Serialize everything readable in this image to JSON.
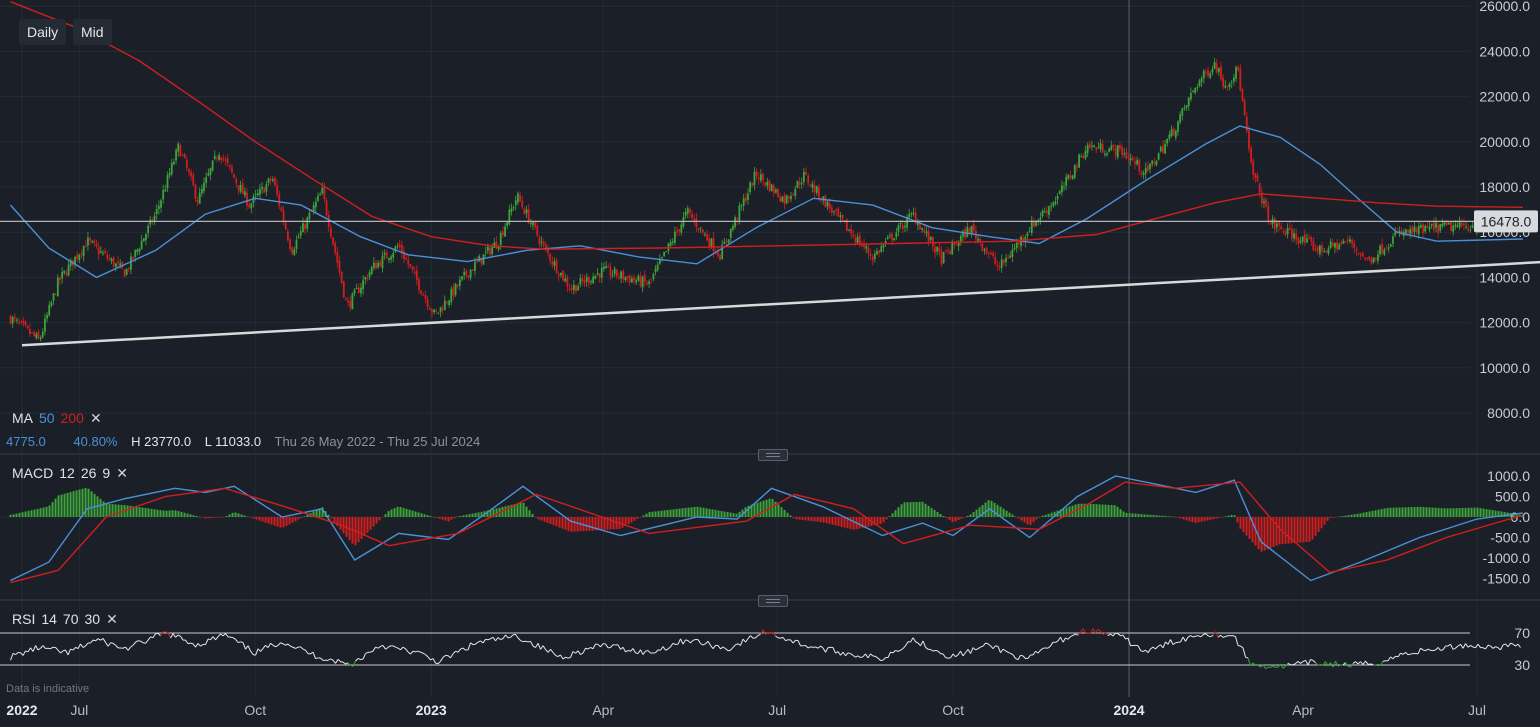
{
  "toolbar": {
    "interval_label": "Daily",
    "price_mode_label": "Mid"
  },
  "indicators": {
    "ma": {
      "label": "MA",
      "period_fast": "50",
      "period_slow": "200",
      "color_fast": "#4a90d9",
      "color_slow": "#d21e1e"
    },
    "macd": {
      "label": "MACD",
      "fast": "12",
      "slow": "26",
      "signal": "9"
    },
    "rsi": {
      "label": "RSI",
      "period": "14",
      "upper": "70",
      "lower": "30"
    }
  },
  "stats": {
    "change": "4775.0",
    "change_pct": "40.80%",
    "high": "H 23770.0",
    "low": "L 11033.0",
    "range": "Thu 26 May 2022 - Thu 25 Jul 2024"
  },
  "disclaimer": "Data is indicative",
  "colors": {
    "background": "#1b2028",
    "up": "#3da53a",
    "down": "#d21e1e",
    "ma_fast": "#4a90d9",
    "ma_slow": "#d21e1e",
    "trendline": "#d9d9d9",
    "current_price_line": "#b0b4ba"
  },
  "chart_data": {
    "type": "candlestick",
    "current_price": 16478.0,
    "current_price_label": "16478.0",
    "price_axis": {
      "ylim": [
        6500,
        26000
      ],
      "ticks": [
        {
          "value": 8000,
          "label": "8000.0"
        },
        {
          "value": 10000,
          "label": "10000.0"
        },
        {
          "value": 12000,
          "label": "12000.0"
        },
        {
          "value": 14000,
          "label": "14000.0"
        },
        {
          "value": 16000,
          "label": "16000.0"
        },
        {
          "value": 18000,
          "label": "18000.0"
        },
        {
          "value": 20000,
          "label": "20000.0"
        },
        {
          "value": 22000,
          "label": "22000.0"
        },
        {
          "value": 24000,
          "label": "24000.0"
        },
        {
          "value": 26000,
          "label": "26000.0"
        }
      ]
    },
    "time_axis": {
      "ticks": [
        {
          "date": "2022-06-01",
          "label": "2022",
          "bold": true
        },
        {
          "date": "2022-07-01",
          "label": "Jul",
          "bold": false
        },
        {
          "date": "2022-10-01",
          "label": "Oct",
          "bold": false
        },
        {
          "date": "2023-01-01",
          "label": "2023",
          "bold": true
        },
        {
          "date": "2023-04-01",
          "label": "Apr",
          "bold": false
        },
        {
          "date": "2023-07-01",
          "label": "Jul",
          "bold": false
        },
        {
          "date": "2023-10-01",
          "label": "Oct",
          "bold": false
        },
        {
          "date": "2024-01-01",
          "label": "2024",
          "bold": true
        },
        {
          "date": "2024-04-01",
          "label": "Apr",
          "bold": false
        },
        {
          "date": "2024-07-01",
          "label": "Jul",
          "bold": false
        }
      ],
      "crosshair_date": "2024-01-01"
    },
    "price_path": [
      [
        "2022-05-26",
        12200
      ],
      [
        "2022-06-10",
        11200
      ],
      [
        "2022-06-20",
        13800
      ],
      [
        "2022-07-05",
        15600
      ],
      [
        "2022-07-25",
        14200
      ],
      [
        "2022-08-10",
        16800
      ],
      [
        "2022-08-22",
        19800
      ],
      [
        "2022-09-01",
        17400
      ],
      [
        "2022-09-12",
        19600
      ],
      [
        "2022-09-28",
        17200
      ],
      [
        "2022-10-10",
        18400
      ],
      [
        "2022-10-20",
        15200
      ],
      [
        "2022-11-05",
        17800
      ],
      [
        "2022-11-18",
        12700
      ],
      [
        "2022-12-01",
        14400
      ],
      [
        "2022-12-15",
        15400
      ],
      [
        "2023-01-03",
        12300
      ],
      [
        "2023-01-20",
        14200
      ],
      [
        "2023-02-05",
        15600
      ],
      [
        "2023-02-15",
        17600
      ],
      [
        "2023-03-01",
        15300
      ],
      [
        "2023-03-15",
        13500
      ],
      [
        "2023-04-01",
        14300
      ],
      [
        "2023-04-25",
        13700
      ],
      [
        "2023-05-15",
        16900
      ],
      [
        "2023-06-01",
        15000
      ],
      [
        "2023-06-20",
        18600
      ],
      [
        "2023-07-05",
        17400
      ],
      [
        "2023-07-15",
        18500
      ],
      [
        "2023-08-01",
        16700
      ],
      [
        "2023-08-20",
        14900
      ],
      [
        "2023-09-10",
        16800
      ],
      [
        "2023-09-25",
        14800
      ],
      [
        "2023-10-10",
        16200
      ],
      [
        "2023-10-25",
        14400
      ],
      [
        "2023-11-10",
        16200
      ],
      [
        "2023-11-25",
        17600
      ],
      [
        "2023-12-10",
        19800
      ],
      [
        "2023-12-28",
        19600
      ],
      [
        "2024-01-10",
        18600
      ],
      [
        "2024-01-25",
        20600
      ],
      [
        "2024-02-05",
        22500
      ],
      [
        "2024-02-15",
        23500
      ],
      [
        "2024-02-20",
        22500
      ],
      [
        "2024-02-27",
        23200
      ],
      [
        "2024-03-05",
        18800
      ],
      [
        "2024-03-15",
        16400
      ],
      [
        "2024-03-28",
        15800
      ],
      [
        "2024-04-10",
        15200
      ],
      [
        "2024-04-25",
        15600
      ],
      [
        "2024-05-05",
        14700
      ],
      [
        "2024-05-20",
        15900
      ],
      [
        "2024-06-10",
        16200
      ],
      [
        "2024-07-01",
        16300
      ],
      [
        "2024-07-25",
        16478
      ]
    ],
    "moving_averages": [
      {
        "name": "MA 50",
        "color": "#4a90d9",
        "values": [
          [
            "2022-05-26",
            17200
          ],
          [
            "2022-06-15",
            15300
          ],
          [
            "2022-07-10",
            14000
          ],
          [
            "2022-08-10",
            15200
          ],
          [
            "2022-09-05",
            16800
          ],
          [
            "2022-10-01",
            17500
          ],
          [
            "2022-10-25",
            17200
          ],
          [
            "2022-11-25",
            15800
          ],
          [
            "2022-12-20",
            15000
          ],
          [
            "2023-01-20",
            14700
          ],
          [
            "2023-02-20",
            15200
          ],
          [
            "2023-03-20",
            15400
          ],
          [
            "2023-04-20",
            14900
          ],
          [
            "2023-05-20",
            14600
          ],
          [
            "2023-06-20",
            16200
          ],
          [
            "2023-07-20",
            17500
          ],
          [
            "2023-08-20",
            17200
          ],
          [
            "2023-09-20",
            16200
          ],
          [
            "2023-10-20",
            15800
          ],
          [
            "2023-11-15",
            15500
          ],
          [
            "2023-12-10",
            16600
          ],
          [
            "2024-01-10",
            18300
          ],
          [
            "2024-02-10",
            19900
          ],
          [
            "2024-02-28",
            20700
          ],
          [
            "2024-03-20",
            20200
          ],
          [
            "2024-04-10",
            19000
          ],
          [
            "2024-05-01",
            17400
          ],
          [
            "2024-05-20",
            16000
          ],
          [
            "2024-06-10",
            15600
          ],
          [
            "2024-07-25",
            15700
          ]
        ]
      },
      {
        "name": "MA 200",
        "color": "#d21e1e",
        "values": [
          [
            "2022-05-26",
            26200
          ],
          [
            "2022-07-01",
            25000
          ],
          [
            "2022-08-01",
            23600
          ],
          [
            "2022-09-01",
            21800
          ],
          [
            "2022-10-01",
            20000
          ],
          [
            "2022-11-01",
            18300
          ],
          [
            "2022-12-01",
            16700
          ],
          [
            "2023-01-01",
            15800
          ],
          [
            "2023-02-01",
            15400
          ],
          [
            "2023-03-01",
            15250
          ],
          [
            "2023-05-01",
            15300
          ],
          [
            "2023-07-01",
            15400
          ],
          [
            "2023-09-01",
            15500
          ],
          [
            "2023-11-01",
            15600
          ],
          [
            "2023-12-15",
            15900
          ],
          [
            "2024-01-15",
            16600
          ],
          [
            "2024-02-15",
            17300
          ],
          [
            "2024-03-10",
            17700
          ],
          [
            "2024-04-10",
            17500
          ],
          [
            "2024-05-10",
            17300
          ],
          [
            "2024-06-10",
            17150
          ],
          [
            "2024-07-25",
            17100
          ]
        ]
      }
    ],
    "trendline": [
      [
        "2022-06-01",
        11000
      ],
      [
        "2024-09-10",
        14850
      ]
    ],
    "macd": {
      "ticks": [
        {
          "value": 1000,
          "label": "1000.0"
        },
        {
          "value": 500,
          "label": "500.0"
        },
        {
          "value": 0,
          "label": "0.0"
        },
        {
          "value": -500,
          "label": "-500.0"
        },
        {
          "value": -1000,
          "label": "-1000.0"
        },
        {
          "value": -1500,
          "label": "-1500.0"
        }
      ],
      "ylim": [
        -1700,
        1200
      ],
      "macd_line": [
        [
          "2022-05-26",
          -1550
        ],
        [
          "2022-06-15",
          -1100
        ],
        [
          "2022-07-05",
          200
        ],
        [
          "2022-07-25",
          450
        ],
        [
          "2022-08-20",
          700
        ],
        [
          "2022-09-05",
          600
        ],
        [
          "2022-09-20",
          750
        ],
        [
          "2022-10-15",
          0
        ],
        [
          "2022-11-05",
          200
        ],
        [
          "2022-11-22",
          -1050
        ],
        [
          "2022-12-15",
          -400
        ],
        [
          "2023-01-10",
          -550
        ],
        [
          "2023-01-30",
          100
        ],
        [
          "2023-02-18",
          750
        ],
        [
          "2023-03-15",
          -100
        ],
        [
          "2023-04-10",
          -450
        ],
        [
          "2023-05-20",
          0
        ],
        [
          "2023-06-10",
          -50
        ],
        [
          "2023-06-28",
          700
        ],
        [
          "2023-07-25",
          250
        ],
        [
          "2023-08-25",
          -450
        ],
        [
          "2023-09-15",
          -150
        ],
        [
          "2023-10-01",
          -450
        ],
        [
          "2023-10-20",
          200
        ],
        [
          "2023-11-10",
          -500
        ],
        [
          "2023-12-05",
          500
        ],
        [
          "2023-12-25",
          1000
        ],
        [
          "2024-01-15",
          800
        ],
        [
          "2024-02-05",
          600
        ],
        [
          "2024-02-25",
          900
        ],
        [
          "2024-03-10",
          -600
        ],
        [
          "2024-04-05",
          -1550
        ],
        [
          "2024-05-01",
          -1100
        ],
        [
          "2024-06-01",
          -500
        ],
        [
          "2024-07-01",
          -50
        ],
        [
          "2024-07-25",
          100
        ]
      ],
      "signal_line": [
        [
          "2022-05-26",
          -1600
        ],
        [
          "2022-06-20",
          -1300
        ],
        [
          "2022-07-15",
          0
        ],
        [
          "2022-08-15",
          500
        ],
        [
          "2022-09-15",
          700
        ],
        [
          "2022-10-20",
          200
        ],
        [
          "2022-11-15",
          -200
        ],
        [
          "2022-12-10",
          -700
        ],
        [
          "2023-01-15",
          -400
        ],
        [
          "2023-02-25",
          550
        ],
        [
          "2023-03-25",
          100
        ],
        [
          "2023-04-25",
          -400
        ],
        [
          "2023-06-15",
          -100
        ],
        [
          "2023-07-10",
          550
        ],
        [
          "2023-08-10",
          200
        ],
        [
          "2023-09-05",
          -650
        ],
        [
          "2023-10-10",
          -200
        ],
        [
          "2023-11-15",
          -300
        ],
        [
          "2023-12-10",
          300
        ],
        [
          "2023-12-30",
          850
        ],
        [
          "2024-01-25",
          700
        ],
        [
          "2024-02-28",
          850
        ],
        [
          "2024-03-20",
          -300
        ],
        [
          "2024-04-15",
          -1350
        ],
        [
          "2024-05-15",
          -1050
        ],
        [
          "2024-06-15",
          -500
        ],
        [
          "2024-07-25",
          50
        ]
      ]
    },
    "rsi": {
      "ticks": [
        {
          "value": 70,
          "label": "70"
        },
        {
          "value": 30,
          "label": "30"
        }
      ],
      "ylim": [
        20,
        80
      ],
      "values": [
        [
          "2022-05-26",
          40
        ],
        [
          "2022-06-10",
          52
        ],
        [
          "2022-06-25",
          45
        ],
        [
          "2022-07-10",
          62
        ],
        [
          "2022-07-25",
          50
        ],
        [
          "2022-08-15",
          70
        ],
        [
          "2022-09-01",
          55
        ],
        [
          "2022-09-15",
          68
        ],
        [
          "2022-10-01",
          45
        ],
        [
          "2022-10-15",
          60
        ],
        [
          "2022-11-01",
          42
        ],
        [
          "2022-11-20",
          30
        ],
        [
          "2022-12-05",
          55
        ],
        [
          "2022-12-25",
          45
        ],
        [
          "2023-01-05",
          34
        ],
        [
          "2023-01-25",
          58
        ],
        [
          "2023-02-15",
          66
        ],
        [
          "2023-03-10",
          40
        ],
        [
          "2023-04-01",
          55
        ],
        [
          "2023-04-25",
          45
        ],
        [
          "2023-05-15",
          62
        ],
        [
          "2023-06-05",
          50
        ],
        [
          "2023-06-25",
          72
        ],
        [
          "2023-07-15",
          55
        ],
        [
          "2023-08-05",
          45
        ],
        [
          "2023-08-25",
          38
        ],
        [
          "2023-09-10",
          62
        ],
        [
          "2023-09-30",
          40
        ],
        [
          "2023-10-20",
          55
        ],
        [
          "2023-11-08",
          36
        ],
        [
          "2023-11-25",
          60
        ],
        [
          "2023-12-10",
          74
        ],
        [
          "2023-12-28",
          65
        ],
        [
          "2024-01-10",
          46
        ],
        [
          "2024-01-25",
          60
        ],
        [
          "2024-02-10",
          70
        ],
        [
          "2024-02-25",
          66
        ],
        [
          "2024-03-05",
          30
        ],
        [
          "2024-03-20",
          28
        ],
        [
          "2024-04-05",
          33
        ],
        [
          "2024-04-25",
          30
        ],
        [
          "2024-05-10",
          32
        ],
        [
          "2024-05-25",
          45
        ],
        [
          "2024-06-10",
          50
        ],
        [
          "2024-06-25",
          55
        ],
        [
          "2024-07-10",
          52
        ],
        [
          "2024-07-25",
          56
        ]
      ]
    }
  }
}
